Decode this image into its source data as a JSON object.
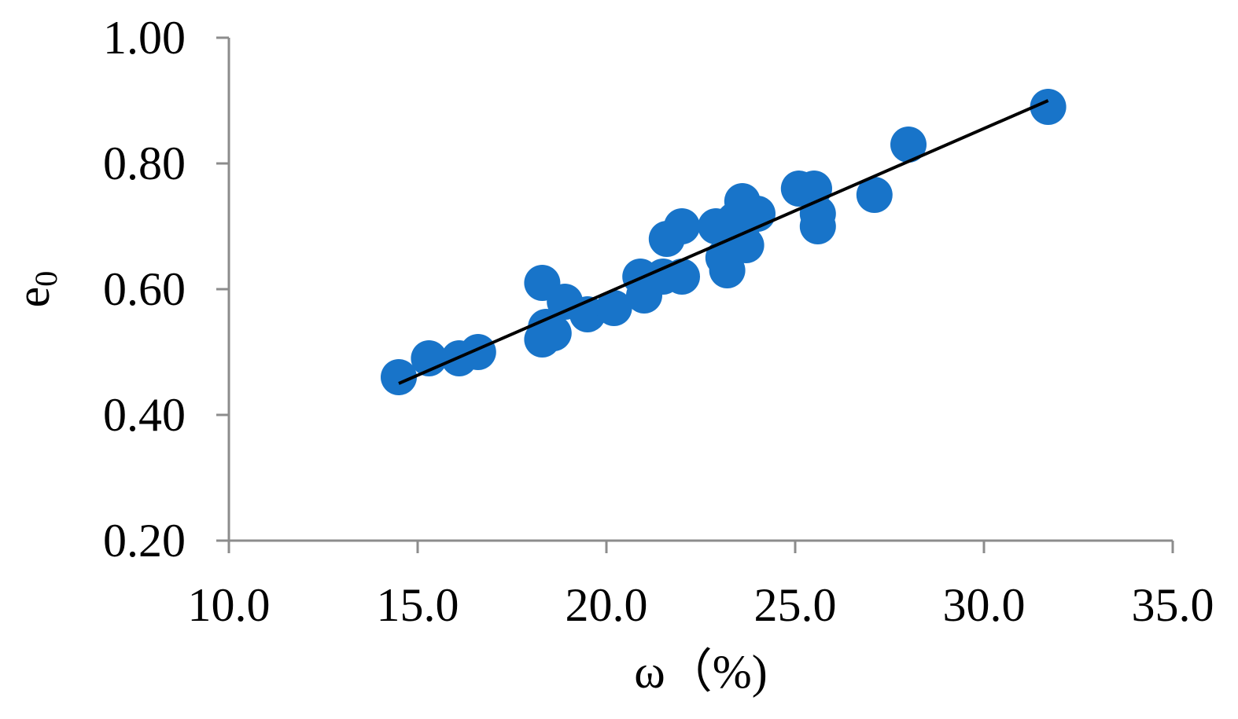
{
  "chart_data": {
    "type": "scatter",
    "xlabel": "ω（%)",
    "ylabel": "e",
    "ylabel_subscript": "0",
    "xlim": [
      10.0,
      35.0
    ],
    "ylim": [
      0.2,
      1.0
    ],
    "x_ticks": [
      10.0,
      15.0,
      20.0,
      25.0,
      30.0,
      35.0
    ],
    "x_tick_labels": [
      "10.0",
      "15.0",
      "20.0",
      "25.0",
      "30.0",
      "35.0"
    ],
    "y_ticks": [
      0.2,
      0.4,
      0.6,
      0.8,
      1.0
    ],
    "y_tick_labels": [
      "0.20",
      "0.40",
      "0.60",
      "0.80",
      "1.00"
    ],
    "grid": false,
    "points": [
      {
        "x": 14.5,
        "y": 0.46
      },
      {
        "x": 15.3,
        "y": 0.49
      },
      {
        "x": 16.1,
        "y": 0.49
      },
      {
        "x": 16.6,
        "y": 0.5
      },
      {
        "x": 18.3,
        "y": 0.61
      },
      {
        "x": 18.3,
        "y": 0.52
      },
      {
        "x": 18.4,
        "y": 0.54
      },
      {
        "x": 18.6,
        "y": 0.53
      },
      {
        "x": 18.9,
        "y": 0.58
      },
      {
        "x": 19.5,
        "y": 0.56
      },
      {
        "x": 20.2,
        "y": 0.57
      },
      {
        "x": 20.9,
        "y": 0.62
      },
      {
        "x": 21.0,
        "y": 0.59
      },
      {
        "x": 21.5,
        "y": 0.62
      },
      {
        "x": 21.6,
        "y": 0.68
      },
      {
        "x": 22.0,
        "y": 0.7
      },
      {
        "x": 22.0,
        "y": 0.62
      },
      {
        "x": 22.9,
        "y": 0.7
      },
      {
        "x": 23.1,
        "y": 0.65
      },
      {
        "x": 23.2,
        "y": 0.63
      },
      {
        "x": 23.4,
        "y": 0.71
      },
      {
        "x": 23.6,
        "y": 0.74
      },
      {
        "x": 23.6,
        "y": 0.68
      },
      {
        "x": 23.7,
        "y": 0.67
      },
      {
        "x": 24.0,
        "y": 0.72
      },
      {
        "x": 25.1,
        "y": 0.76
      },
      {
        "x": 25.5,
        "y": 0.76
      },
      {
        "x": 25.6,
        "y": 0.72
      },
      {
        "x": 25.6,
        "y": 0.7
      },
      {
        "x": 27.1,
        "y": 0.75
      },
      {
        "x": 28.0,
        "y": 0.83
      },
      {
        "x": 31.7,
        "y": 0.89
      }
    ],
    "trendline": {
      "x": [
        14.5,
        31.7
      ],
      "y": [
        0.45,
        0.9
      ]
    },
    "colors": {
      "points": "#1874C9",
      "trendline": "#000000",
      "axis": "#8C8C8C"
    }
  }
}
